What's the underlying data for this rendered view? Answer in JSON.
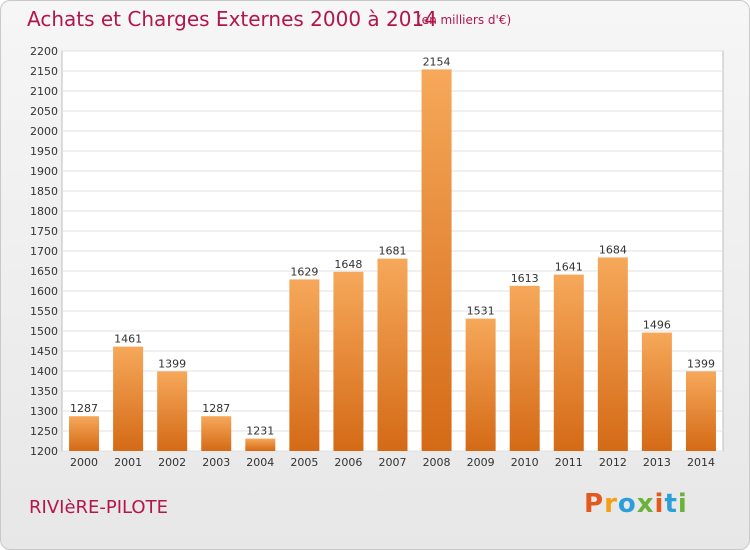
{
  "header": {
    "title": "Achats et Charges Externes 2000 à 2014",
    "subtitle": "(en milliers d'€)"
  },
  "footer": {
    "commune": "RIVIèRE-PILOTE",
    "logo_text": "Proxiti"
  },
  "colors": {
    "accent": "#b3164a",
    "bar_top": "#f6a85a",
    "bar_bottom": "#d46a16",
    "logo": [
      "#e2581f",
      "#f39f18",
      "#2d9fd8",
      "#6ab23a",
      "#e2581f",
      "#2d9fd8",
      "#6ab23a"
    ]
  },
  "chart_data": {
    "type": "bar",
    "title": "Achats et Charges Externes 2000 à 2014",
    "subtitle": "(en milliers d'€)",
    "categories": [
      "2000",
      "2001",
      "2002",
      "2003",
      "2004",
      "2005",
      "2006",
      "2007",
      "2008",
      "2009",
      "2010",
      "2011",
      "2012",
      "2013",
      "2014"
    ],
    "values": [
      1287,
      1461,
      1399,
      1287,
      1231,
      1629,
      1648,
      1681,
      2154,
      1531,
      1613,
      1641,
      1684,
      1496,
      1399
    ],
    "ylim": [
      1200,
      2200
    ],
    "yticks": [
      1200,
      1250,
      1300,
      1350,
      1400,
      1450,
      1500,
      1550,
      1600,
      1650,
      1700,
      1750,
      1800,
      1850,
      1900,
      1950,
      2000,
      2050,
      2100,
      2150,
      2200
    ],
    "grid": true,
    "xlabel": "",
    "ylabel": ""
  }
}
